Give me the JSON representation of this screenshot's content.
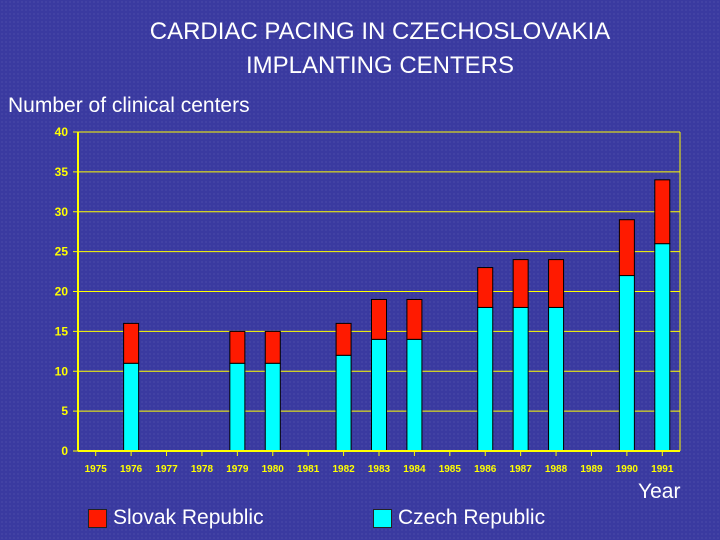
{
  "chart_data": {
    "type": "bar",
    "stacked": true,
    "title": "CARDIAC PACING IN CZECHOSLOVAKIA",
    "subtitle": "IMPLANTING CENTERS",
    "ylabel": "Number of clinical centers",
    "xlabel": "Year",
    "ylim": [
      0,
      40
    ],
    "yticks": [
      0,
      5,
      10,
      15,
      20,
      25,
      30,
      35,
      40
    ],
    "grid": true,
    "categories": [
      "1975",
      "1976",
      "1977",
      "1978",
      "1979",
      "1980",
      "1981",
      "1982",
      "1983",
      "1984",
      "1985",
      "1986",
      "1987",
      "1988",
      "1989",
      "1990",
      "1991"
    ],
    "series": [
      {
        "name": "Czech Republic",
        "color": "#00ffff",
        "values": [
          0,
          11,
          0,
          0,
          11,
          11,
          0,
          12,
          14,
          14,
          0,
          18,
          18,
          18,
          0,
          22,
          26
        ]
      },
      {
        "name": "Slovak Republic",
        "color": "#ff1a00",
        "values": [
          0,
          5,
          0,
          0,
          4,
          4,
          0,
          4,
          5,
          5,
          0,
          5,
          6,
          6,
          0,
          7,
          8
        ]
      }
    ],
    "legend": [
      {
        "label": "Slovak Republic",
        "color": "#ff1a00"
      },
      {
        "label": "Czech Republic",
        "color": "#00ffff"
      }
    ],
    "axis_color": "#ffff00",
    "gridline_color": "#ffff00"
  }
}
